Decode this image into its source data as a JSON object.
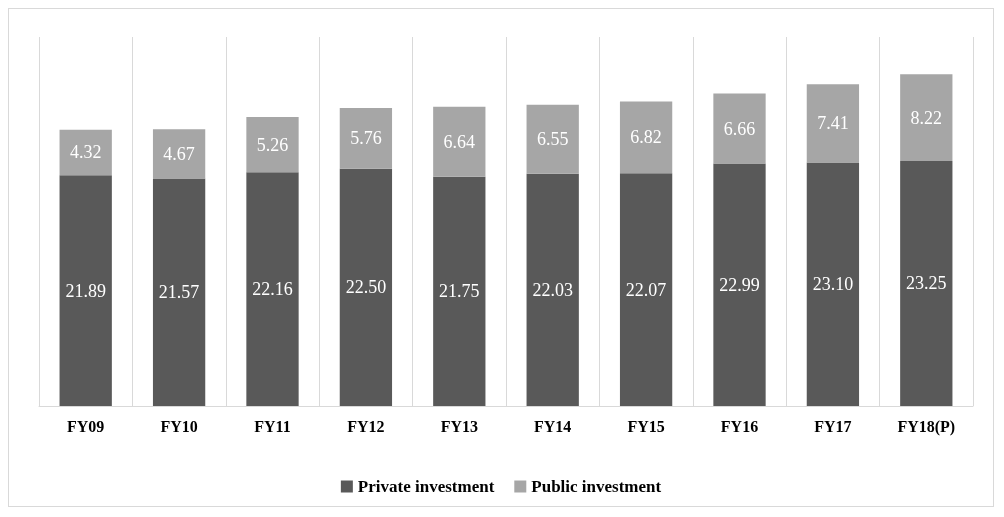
{
  "chart_data": {
    "type": "bar",
    "stacked": true,
    "grid": "x",
    "legend": "bottom",
    "categories": [
      "FY09",
      "FY10",
      "FY11",
      "FY12",
      "FY13",
      "FY14",
      "FY15",
      "FY16",
      "FY17",
      "FY18(P)"
    ],
    "series": [
      {
        "name": "Private investment",
        "color": "#595959",
        "values": [
          21.89,
          21.57,
          22.16,
          22.5,
          21.75,
          22.03,
          22.07,
          22.99,
          23.1,
          23.25
        ],
        "value_labels": [
          "21.89",
          "21.57",
          "22.16",
          "22.50",
          "21.75",
          "22.03",
          "22.07",
          "22.99",
          "23.10",
          "23.25"
        ]
      },
      {
        "name": "Public investment",
        "color": "#a6a6a6",
        "values": [
          4.32,
          4.67,
          5.26,
          5.76,
          6.64,
          6.55,
          6.82,
          6.66,
          7.41,
          8.22
        ],
        "value_labels": [
          "4.32",
          "4.67",
          "5.26",
          "5.76",
          "6.64",
          "6.55",
          "6.82",
          "6.66",
          "7.41",
          "8.22"
        ]
      }
    ]
  }
}
